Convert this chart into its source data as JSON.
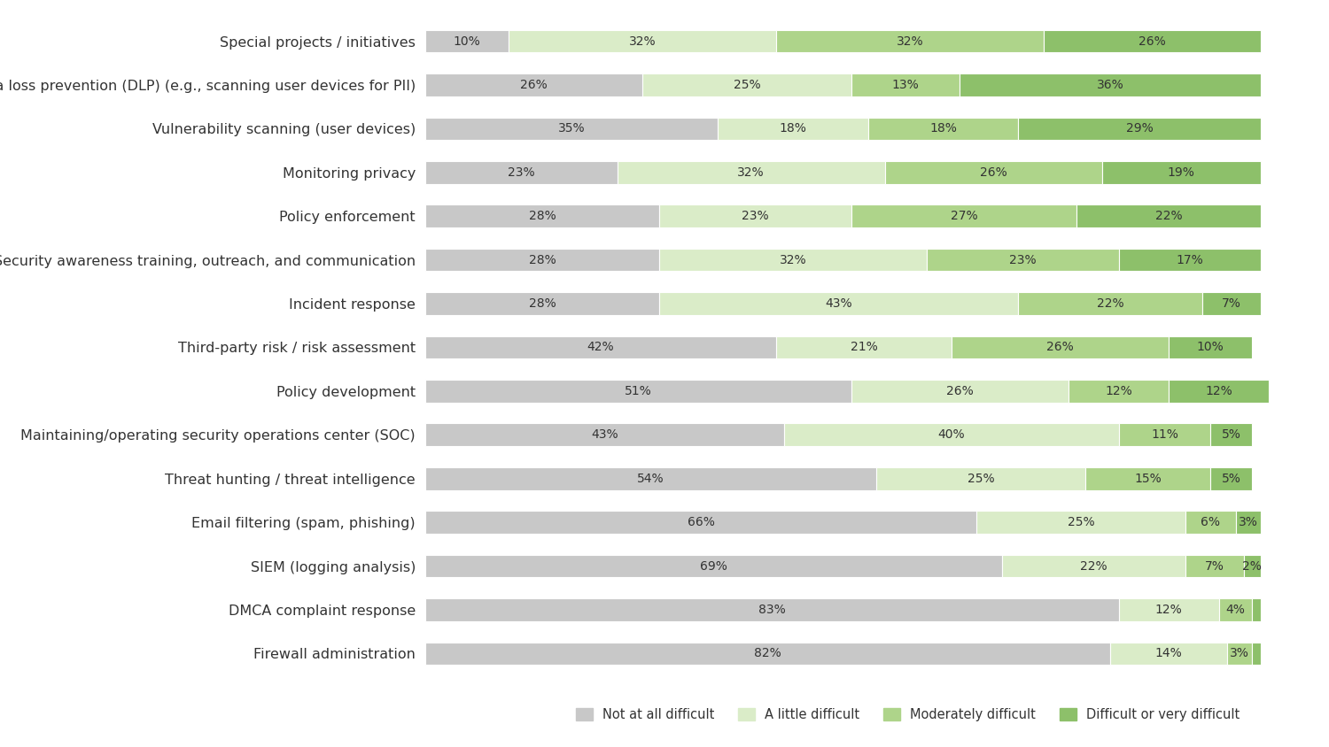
{
  "categories": [
    "Special projects / initiatives",
    "Data loss prevention (DLP) (e.g., scanning user devices for PII)",
    "Vulnerability scanning (user devices)",
    "Monitoring privacy",
    "Policy enforcement",
    "Security awareness training, outreach, and communication",
    "Incident response",
    "Third-party risk / risk assessment",
    "Policy development",
    "Maintaining/operating security operations center (SOC)",
    "Threat hunting / threat intelligence",
    "Email filtering (spam, phishing)",
    "SIEM (logging analysis)",
    "DMCA complaint response",
    "Firewall administration"
  ],
  "data": [
    [
      10,
      32,
      32,
      26
    ],
    [
      26,
      25,
      13,
      36
    ],
    [
      35,
      18,
      18,
      29
    ],
    [
      23,
      32,
      26,
      19
    ],
    [
      28,
      23,
      27,
      22
    ],
    [
      28,
      32,
      23,
      17
    ],
    [
      28,
      43,
      22,
      7
    ],
    [
      42,
      21,
      26,
      10
    ],
    [
      51,
      26,
      12,
      12
    ],
    [
      43,
      40,
      11,
      5
    ],
    [
      54,
      25,
      15,
      5
    ],
    [
      66,
      25,
      6,
      3
    ],
    [
      69,
      22,
      7,
      2
    ],
    [
      83,
      12,
      4,
      1
    ],
    [
      82,
      14,
      3,
      1
    ]
  ],
  "colors": [
    "#c8c8c8",
    "#daecc8",
    "#aed48a",
    "#8dc06a"
  ],
  "legend_labels": [
    "Not at all difficult",
    "A little difficult",
    "Moderately difficult",
    "Difficult or very difficult"
  ],
  "bar_height": 0.52,
  "background_color": "#ffffff",
  "text_color": "#333333",
  "fontsize_labels": 11.5,
  "fontsize_bars": 10.0
}
